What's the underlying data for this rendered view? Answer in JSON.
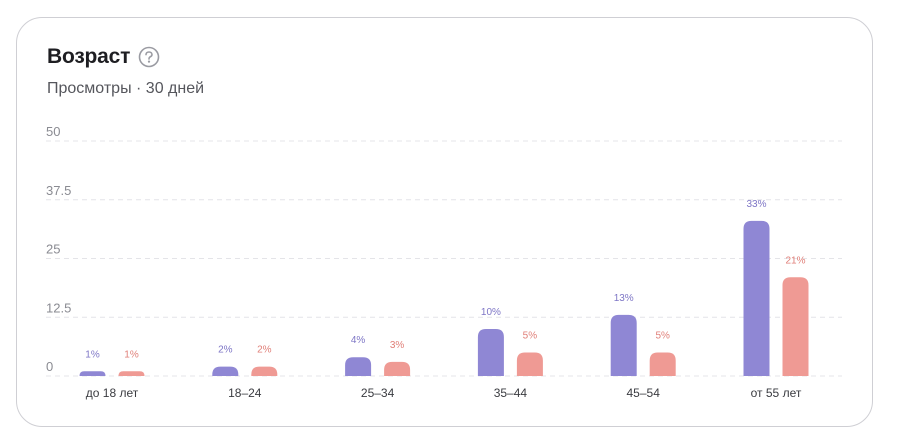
{
  "card": {
    "title": "Возраст",
    "subtitle": "Просмотры · 30 дней"
  },
  "icons": {
    "help": "question-circle-icon"
  },
  "colors": {
    "series1": "#8f87d4",
    "series2": "#ef9a94",
    "label1": "#7e76c6",
    "label2": "#e07f78",
    "grid": "#e4e4e8"
  },
  "chart_data": {
    "type": "bar",
    "categories": [
      "до 18 лет",
      "18–24",
      "25–34",
      "35–44",
      "45–54",
      "от 55 лет"
    ],
    "series": [
      {
        "values": [
          1,
          2,
          4,
          10,
          13,
          33
        ],
        "labels": [
          "1%",
          "2%",
          "4%",
          "10%",
          "13%",
          "33%"
        ]
      },
      {
        "values": [
          1,
          2,
          3,
          5,
          5,
          21
        ],
        "labels": [
          "1%",
          "2%",
          "3%",
          "5%",
          "5%",
          "21%"
        ]
      }
    ],
    "yticks": [
      "0",
      "12.5",
      "25",
      "37.5",
      "50"
    ],
    "ylim": [
      0,
      50
    ],
    "grid": true
  }
}
